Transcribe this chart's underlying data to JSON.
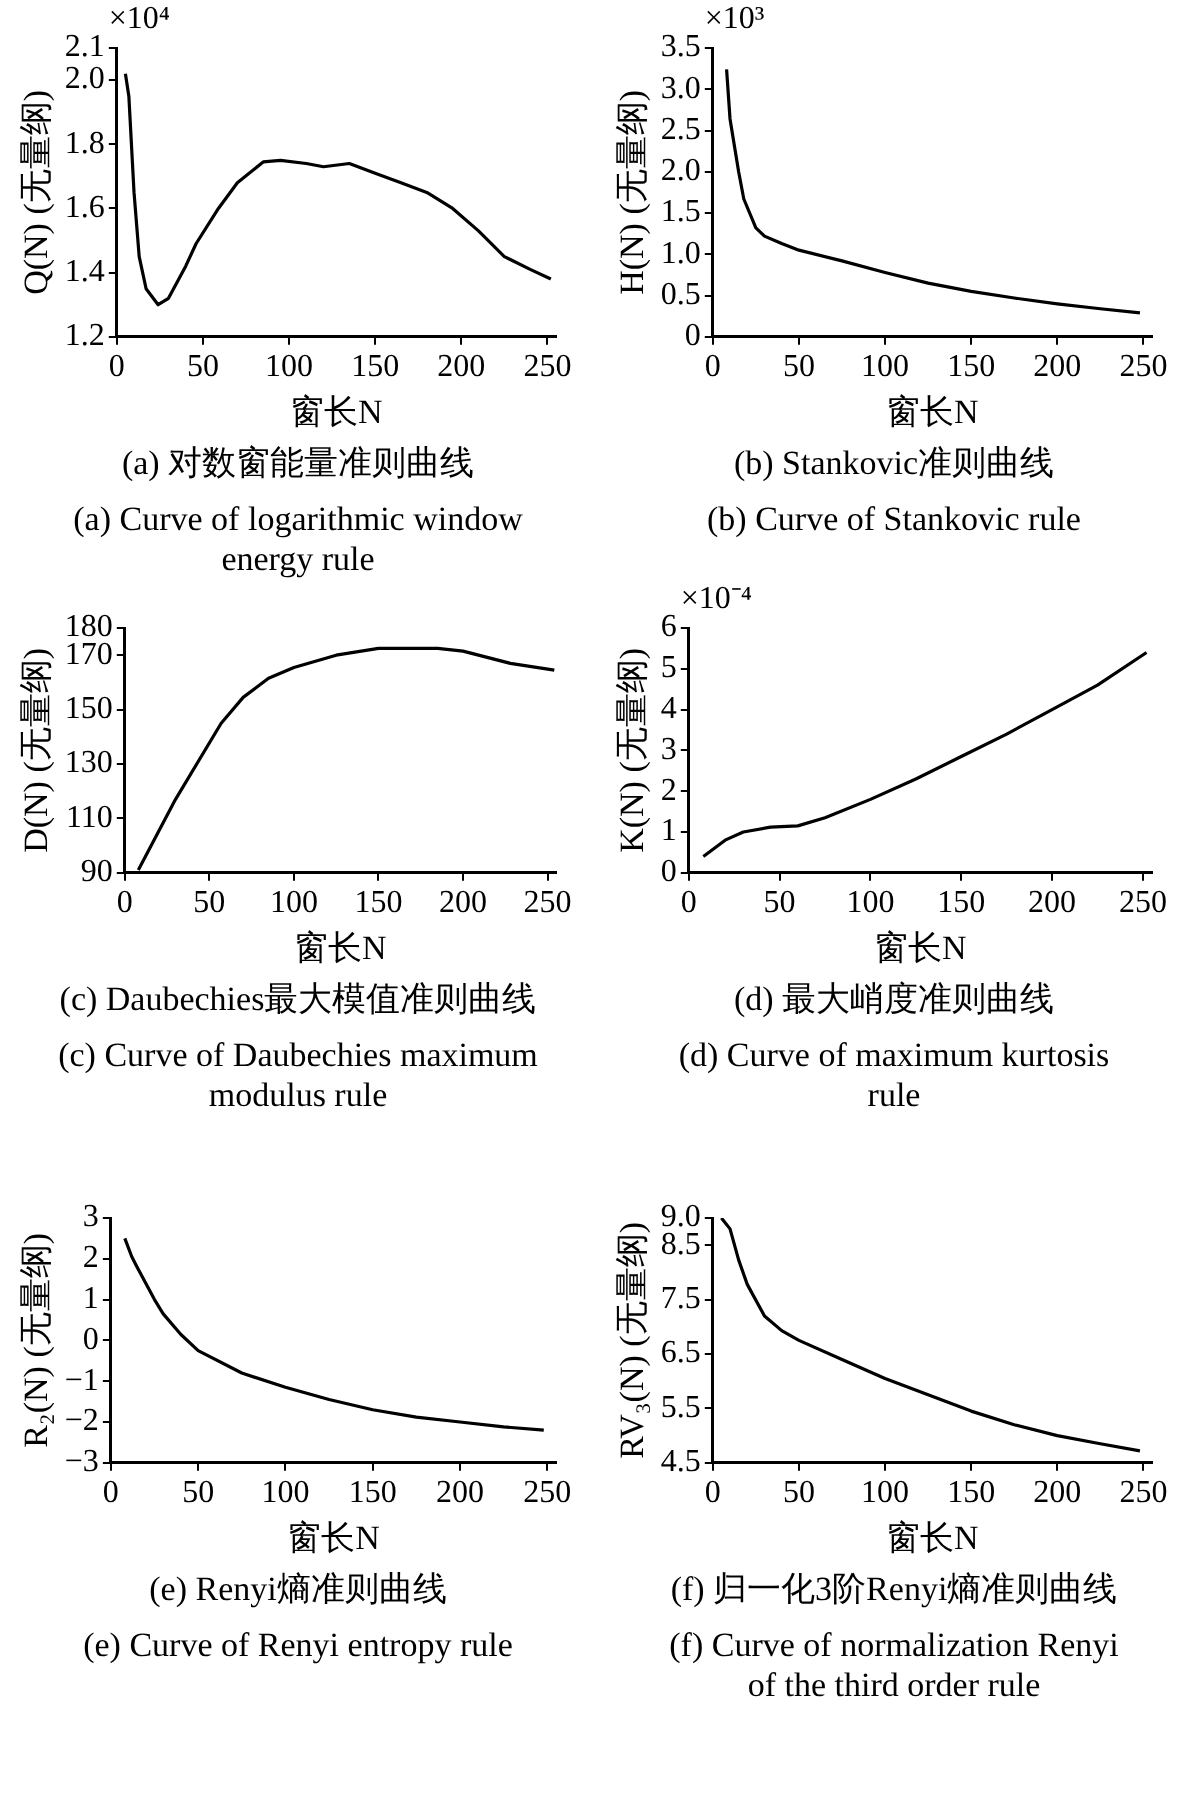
{
  "chart_data": [
    {
      "type": "line",
      "title": "(a)  对数窗能量准则曲线",
      "subtitle": "(a)  Curve of logarithmic window energy rule",
      "xlabel": "窗长N",
      "ylabel": "Q(N) (无量纲)",
      "annotations": [
        "×10⁴"
      ],
      "xlim": [
        0,
        255
      ],
      "xticks": [
        0,
        50,
        100,
        150,
        200,
        250
      ],
      "ylim": [
        1.2,
        2.1
      ],
      "yticks": [
        1.2,
        1.4,
        1.6,
        1.8,
        {
          "value": 2.0,
          "label": "2.0"
        },
        2.1
      ],
      "grid": false,
      "legend": false,
      "series": [
        {
          "color": "#000000",
          "x": [
            5,
            7,
            10,
            13,
            17,
            24,
            30,
            40,
            46,
            59,
            70,
            85,
            95,
            110,
            120,
            135,
            150,
            165,
            180,
            195,
            210,
            225,
            240,
            252
          ],
          "values": [
            2.02,
            1.95,
            1.65,
            1.45,
            1.35,
            1.3,
            1.32,
            1.42,
            1.49,
            1.6,
            1.68,
            1.745,
            1.75,
            1.74,
            1.73,
            1.74,
            1.71,
            1.68,
            1.65,
            1.6,
            1.53,
            1.45,
            1.41,
            1.38
          ]
        }
      ]
    },
    {
      "type": "line",
      "title": "(b)  Stankovic准则曲线",
      "subtitle": "(b)  Curve of Stankovic rule",
      "xlabel": "窗长N",
      "ylabel": "H(N) (无量纲)",
      "annotations": [
        "×10³"
      ],
      "xlim": [
        0,
        255
      ],
      "xticks": [
        0,
        50,
        100,
        150,
        200,
        250
      ],
      "ylim": [
        0,
        3.5
      ],
      "yticks": [
        0,
        0.5,
        {
          "value": 1.0,
          "label": "1.0"
        },
        1.5,
        {
          "value": 2.0,
          "label": "2.0"
        },
        2.5,
        {
          "value": 3.0,
          "label": "3.0"
        },
        3.5
      ],
      "grid": false,
      "legend": false,
      "series": [
        {
          "color": "#000000",
          "x": [
            8,
            10,
            15,
            18,
            25,
            30,
            40,
            50,
            75,
            100,
            125,
            150,
            175,
            200,
            225,
            248
          ],
          "values": [
            3.24,
            2.64,
            2.0,
            1.67,
            1.32,
            1.22,
            1.13,
            1.05,
            0.92,
            0.78,
            0.65,
            0.55,
            0.47,
            0.4,
            0.34,
            0.29
          ]
        }
      ]
    },
    {
      "type": "line",
      "title": "(c)  Daubechies最大模值准则曲线",
      "subtitle": "(c)  Curve of Daubechies maximum modulus rule",
      "xlabel": "窗长N",
      "ylabel": "D(N) (无量纲)",
      "xlim": [
        0,
        255
      ],
      "xticks": [
        0,
        50,
        100,
        150,
        200,
        250
      ],
      "ylim": [
        90,
        180
      ],
      "yticks": [
        90,
        110,
        130,
        150,
        170,
        180
      ],
      "grid": false,
      "legend": false,
      "series": [
        {
          "color": "#000000",
          "x": [
            8,
            30,
            57,
            70,
            85,
            100,
            125,
            150,
            185,
            200,
            228,
            254
          ],
          "values": [
            91,
            117,
            145,
            154.5,
            161.5,
            165.5,
            170,
            172.5,
            172.5,
            171.5,
            167,
            164.5
          ]
        }
      ]
    },
    {
      "type": "line",
      "title": "(d)  最大峭度准则曲线",
      "subtitle": "(d)  Curve of maximum kurtosis rule",
      "xlabel": "窗长N",
      "ylabel": "K(N) (无量纲)",
      "annotations": [
        "×10⁻⁴"
      ],
      "xlim": [
        0,
        255
      ],
      "xticks": [
        0,
        50,
        100,
        150,
        200,
        250
      ],
      "ylim": [
        0,
        6
      ],
      "yticks": [
        0,
        1,
        2,
        3,
        4,
        5,
        6
      ],
      "grid": false,
      "legend": false,
      "series": [
        {
          "color": "#000000",
          "x": [
            8,
            20,
            30,
            45,
            60,
            75,
            100,
            125,
            150,
            175,
            200,
            225,
            252
          ],
          "values": [
            0.4,
            0.8,
            1.0,
            1.12,
            1.15,
            1.35,
            1.8,
            2.3,
            2.85,
            3.4,
            4.0,
            4.6,
            5.4
          ]
        }
      ]
    },
    {
      "type": "line",
      "title": "(e)  Renyi熵准则曲线",
      "subtitle": "(e)  Curve of Renyi entropy rule",
      "xlabel": "窗长N",
      "ylabel": "R₂(N) (无量纲)",
      "xlim": [
        0,
        255
      ],
      "xticks": [
        0,
        50,
        100,
        150,
        200,
        250
      ],
      "ylim": [
        -3,
        3
      ],
      "yticks": [
        {
          "value": -3,
          "label": "−3"
        },
        {
          "value": -2,
          "label": "−2"
        },
        {
          "value": -1,
          "label": "−1"
        },
        0,
        1,
        2,
        3
      ],
      "grid": false,
      "legend": false,
      "series": [
        {
          "color": "#000000",
          "x": [
            8,
            12,
            15,
            20,
            25,
            30,
            40,
            50,
            75,
            100,
            125,
            150,
            175,
            200,
            225,
            248
          ],
          "values": [
            2.5,
            2.05,
            1.8,
            1.4,
            1.0,
            0.65,
            0.15,
            -0.25,
            -0.8,
            -1.15,
            -1.45,
            -1.7,
            -1.88,
            -2.0,
            -2.12,
            -2.2
          ]
        }
      ]
    },
    {
      "type": "line",
      "title": "(f)  归一化3阶Renyi熵准则曲线",
      "subtitle": "(f)  Curve of normalization Renyi of the third order rule",
      "xlabel": "窗长N",
      "ylabel": "RV₃(N) (无量纲)",
      "xlim": [
        0,
        255
      ],
      "xticks": [
        0,
        50,
        100,
        150,
        200,
        250
      ],
      "ylim": [
        4.5,
        9.0
      ],
      "yticks": [
        4.5,
        5.5,
        6.5,
        7.5,
        8.5,
        {
          "value": 9.0,
          "label": "9.0"
        }
      ],
      "grid": false,
      "legend": false,
      "series": [
        {
          "color": "#000000",
          "x": [
            5,
            10,
            15,
            20,
            30,
            40,
            50,
            75,
            100,
            125,
            150,
            175,
            200,
            225,
            248
          ],
          "values": [
            9.0,
            8.8,
            8.23,
            7.78,
            7.2,
            6.93,
            6.75,
            6.4,
            6.05,
            5.75,
            5.45,
            5.2,
            5.0,
            4.85,
            4.72
          ]
        }
      ]
    }
  ]
}
